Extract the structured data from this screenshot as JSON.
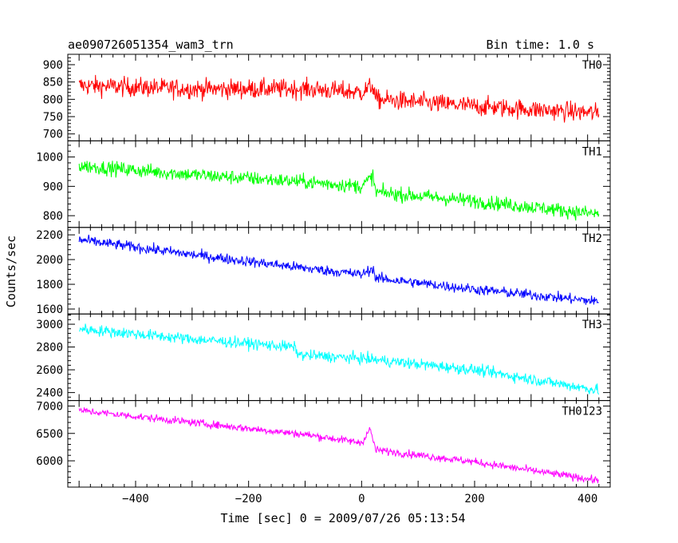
{
  "header": {
    "left_title": "ae090726051354_wam3_trn",
    "right_title": "Bin time: 1.0 s"
  },
  "xlabel": "Time [sec] 0 = 2009/07/26 05:13:54",
  "ylabel": "Counts/sec",
  "chart_data": {
    "type": "line",
    "xlim": [
      -520,
      440
    ],
    "x_ticks": [
      -400,
      -200,
      0,
      200,
      400
    ],
    "x_range": [
      -500,
      420
    ],
    "bin_time_s": 1.0,
    "grid": false,
    "panels": [
      {
        "name": "TH0",
        "color": "#ff0000",
        "ylim": [
          680,
          930
        ],
        "y_ticks": [
          700,
          750,
          800,
          850,
          900
        ],
        "trend": [
          [
            -500,
            840
          ],
          [
            -300,
            830
          ],
          [
            -100,
            830
          ],
          [
            0,
            820
          ],
          [
            20,
            840
          ],
          [
            25,
            800
          ],
          [
            200,
            780
          ],
          [
            420,
            760
          ]
        ],
        "noise": 40
      },
      {
        "name": "TH1",
        "color": "#00ff00",
        "ylim": [
          760,
          1055
        ],
        "y_ticks": [
          800,
          900,
          1000
        ],
        "trend": [
          [
            -500,
            970
          ],
          [
            -300,
            940
          ],
          [
            -100,
            915
          ],
          [
            0,
            900
          ],
          [
            20,
            935
          ],
          [
            25,
            880
          ],
          [
            200,
            850
          ],
          [
            420,
            805
          ]
        ],
        "noise": 35
      },
      {
        "name": "TH2",
        "color": "#0000ff",
        "ylim": [
          1560,
          2260
        ],
        "y_ticks": [
          1600,
          1800,
          2000,
          2200
        ],
        "trend": [
          [
            -500,
            2160
          ],
          [
            -300,
            2040
          ],
          [
            -100,
            1930
          ],
          [
            0,
            1880
          ],
          [
            20,
            1930
          ],
          [
            25,
            1850
          ],
          [
            200,
            1760
          ],
          [
            420,
            1660
          ]
        ],
        "noise": 60
      },
      {
        "name": "TH3",
        "color": "#00ffff",
        "ylim": [
          2330,
          3090
        ],
        "y_ticks": [
          2400,
          2600,
          2800,
          3000
        ],
        "trend": [
          [
            -500,
            2960
          ],
          [
            -300,
            2870
          ],
          [
            -120,
            2800
          ],
          [
            -110,
            2730
          ],
          [
            0,
            2700
          ],
          [
            200,
            2600
          ],
          [
            420,
            2420
          ]
        ],
        "noise": 70
      },
      {
        "name": "TH0123",
        "color": "#ff00ff",
        "ylim": [
          5520,
          7100
        ],
        "y_ticks": [
          6000,
          6500,
          7000
        ],
        "trend": [
          [
            -500,
            6920
          ],
          [
            -300,
            6700
          ],
          [
            -100,
            6480
          ],
          [
            0,
            6330
          ],
          [
            15,
            6580
          ],
          [
            25,
            6200
          ],
          [
            200,
            5980
          ],
          [
            420,
            5640
          ]
        ],
        "noise": 100
      }
    ]
  }
}
